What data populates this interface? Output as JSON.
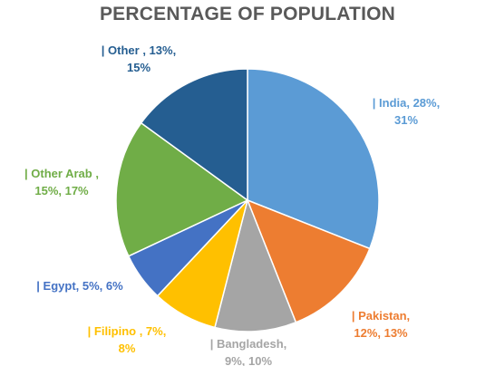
{
  "chart_data": {
    "type": "pie",
    "title": "PERCENTAGE OF POPULATION",
    "slices": [
      {
        "name": "India",
        "label_lines": [
          "| India, 28%,",
          "31%"
        ],
        "value": 31,
        "color": "#5B9BD5"
      },
      {
        "name": "Pakistan",
        "label_lines": [
          "| Pakistan,",
          "12%, 13%"
        ],
        "value": 13,
        "color": "#ED7D31"
      },
      {
        "name": "Bangladesh",
        "label_lines": [
          "| Bangladesh,",
          "9%, 10%"
        ],
        "value": 10,
        "color": "#A5A5A5"
      },
      {
        "name": "Filipino",
        "label_lines": [
          "| Filipino , 7%,",
          "8%"
        ],
        "value": 8,
        "color": "#FFC000"
      },
      {
        "name": "Egypt",
        "label_lines": [
          "| Egypt, 5%, 6%"
        ],
        "value": 6,
        "color": "#4472C4"
      },
      {
        "name": "Other Arab",
        "label_lines": [
          "| Other Arab ,",
          "15%, 17%"
        ],
        "value": 17,
        "color": "#70AD47"
      },
      {
        "name": "Other",
        "label_lines": [
          "| Other , 13%,",
          "15%"
        ],
        "value": 15,
        "color": "#255E91"
      }
    ],
    "start_angle": "12 o'clock",
    "direction": "clockwise",
    "legend": "none"
  }
}
